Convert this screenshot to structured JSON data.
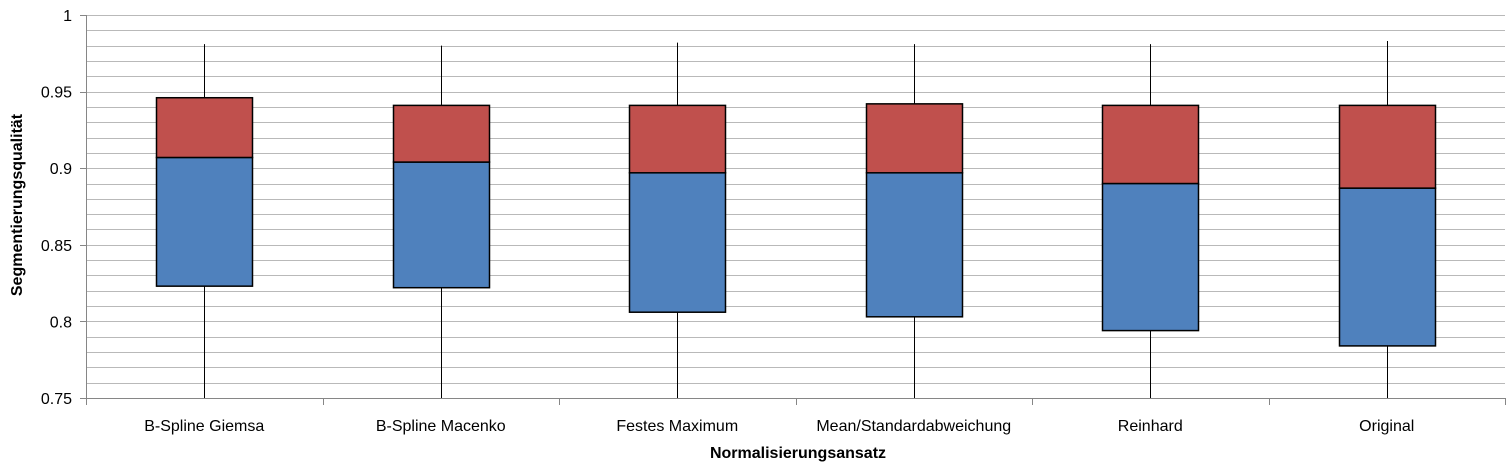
{
  "chart_data": {
    "type": "boxplot",
    "title": "",
    "xlabel": "Normalisierungsansatz",
    "ylabel": "Segmentierungsqualität",
    "ylim": [
      0.75,
      1.0
    ],
    "yticks": [
      0.75,
      0.8,
      0.85,
      0.9,
      0.95,
      1
    ],
    "ytick_labels": [
      "0.75",
      "0.8",
      "0.85",
      "0.9",
      "0.95",
      "1"
    ],
    "minor_grid_step": 0.01,
    "grid": true,
    "legend": "none",
    "categories": [
      "B-Spline Giemsa",
      "B-Spline Macenko",
      "Festes Maximum",
      "Mean/Standardabweichung",
      "Reinhard",
      "Original"
    ],
    "series": [
      {
        "stat": "min",
        "values": [
          0.75,
          0.75,
          0.75,
          0.75,
          0.75,
          0.75
        ]
      },
      {
        "stat": "q1",
        "values": [
          0.823,
          0.822,
          0.806,
          0.803,
          0.794,
          0.784
        ]
      },
      {
        "stat": "median",
        "values": [
          0.907,
          0.904,
          0.897,
          0.897,
          0.89,
          0.887
        ]
      },
      {
        "stat": "q3",
        "values": [
          0.946,
          0.941,
          0.941,
          0.942,
          0.941,
          0.941
        ]
      },
      {
        "stat": "max",
        "values": [
          0.981,
          0.98,
          0.982,
          0.981,
          0.981,
          0.983
        ]
      }
    ],
    "colors": {
      "lower_box": "#4f81bd",
      "upper_box": "#c0504d",
      "grid": "#b9b9b9",
      "axis": "#868686"
    }
  }
}
